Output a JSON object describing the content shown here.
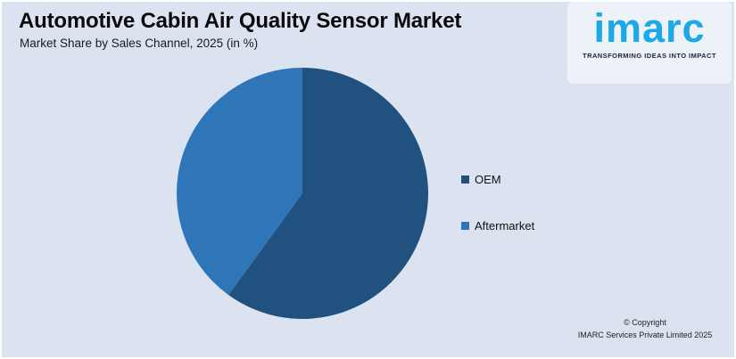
{
  "header": {
    "title": "Automotive Cabin Air Quality Sensor Market",
    "subtitle": "Market Share by Sales Channel, 2025 (in %)"
  },
  "logo": {
    "brand": "imarc",
    "tagline": "TRANSFORMING IDEAS INTO IMPACT",
    "brand_color": "#1BA9E8",
    "tagline_color": "#1A2440"
  },
  "chart_data": {
    "type": "pie",
    "title": "Automotive Cabin Air Quality Sensor Market",
    "subtitle": "Market Share by Sales Channel, 2025 (in %)",
    "labels": [
      "OEM",
      "Aftermarket"
    ],
    "values": [
      60,
      40
    ],
    "unit": "%",
    "colors": [
      "#21527F",
      "#2F76B8"
    ],
    "start_angle_deg": 0,
    "direction": "clockwise",
    "legend_position": "right",
    "data_labels_shown": false,
    "values_note": "estimated from slice angles; no numeric labels shown on chart"
  },
  "footer": {
    "line1": "© Copyright",
    "line2": "IMARC Services Private Limited 2025"
  },
  "colors": {
    "background": "#DBE2F0"
  }
}
